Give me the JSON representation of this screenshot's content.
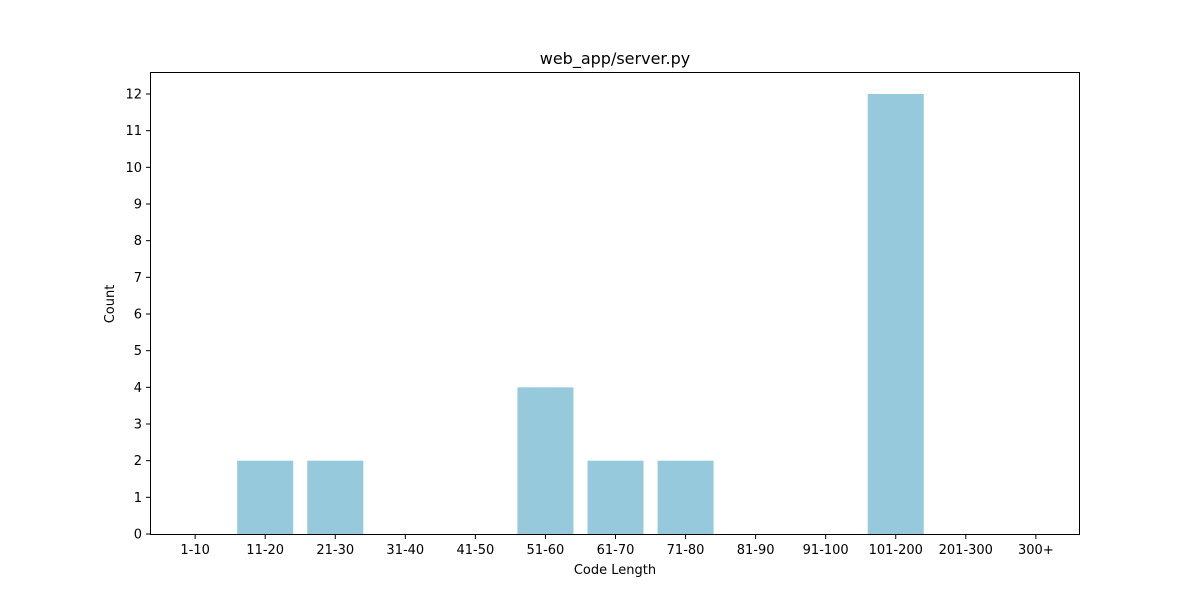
{
  "chart_data": {
    "type": "bar",
    "title": "web_app/server.py",
    "xlabel": "Code Length",
    "ylabel": "Count",
    "categories": [
      "1-10",
      "11-20",
      "21-30",
      "31-40",
      "41-50",
      "51-60",
      "61-70",
      "71-80",
      "81-90",
      "91-100",
      "101-200",
      "201-300",
      "300+"
    ],
    "values": [
      0,
      2,
      2,
      0,
      0,
      4,
      2,
      2,
      0,
      0,
      12,
      0,
      0
    ],
    "ylim": [
      0,
      12.6
    ],
    "yticks": [
      0,
      1,
      2,
      3,
      4,
      5,
      6,
      7,
      8,
      9,
      10,
      11,
      12
    ],
    "grid": false,
    "bar_color": "#96c9dc"
  }
}
